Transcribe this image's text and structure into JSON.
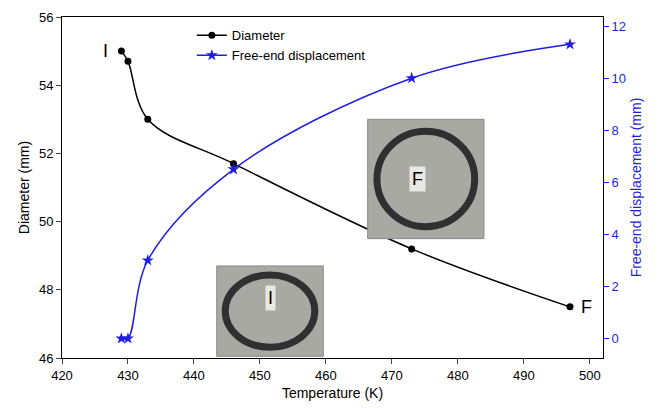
{
  "chart_data": {
    "type": "line",
    "x_label": "Temperature (K)",
    "y_label": "Diameter (mm)",
    "y2_label": "Free-end displacement (mm)",
    "xlim": [
      420,
      502
    ],
    "xticks": [
      420,
      430,
      440,
      450,
      460,
      470,
      480,
      490,
      500
    ],
    "ylim": [
      46,
      56
    ],
    "yticks": [
      46,
      48,
      50,
      52,
      54,
      56
    ],
    "y2lim": [
      -0.75,
      12.35
    ],
    "y2ticks": [
      0,
      2,
      4,
      6,
      8,
      10,
      12
    ],
    "grid": false,
    "legend": "upper left",
    "series": [
      {
        "name": "Diameter",
        "color": "#000000",
        "marker": "circle",
        "line_style": "solid",
        "x": [
          429,
          430,
          433,
          446,
          473,
          497
        ],
        "values": [
          55.0,
          54.7,
          53.0,
          51.7,
          49.2,
          47.5
        ]
      },
      {
        "name": "Free-end displacement",
        "color": "#1f1fe0",
        "marker": "star",
        "line_style": "solid",
        "axis": "y2",
        "x": [
          429,
          430,
          433,
          446,
          473,
          497
        ],
        "values": [
          0,
          0,
          3.0,
          6.5,
          10.0,
          11.3
        ]
      }
    ],
    "annotations": [
      {
        "text": "I",
        "x": 429,
        "y": 55.0
      },
      {
        "text": "F",
        "x": 497,
        "y": 47.5
      }
    ],
    "insets": [
      {
        "label": "I"
      },
      {
        "label": "F"
      }
    ]
  }
}
